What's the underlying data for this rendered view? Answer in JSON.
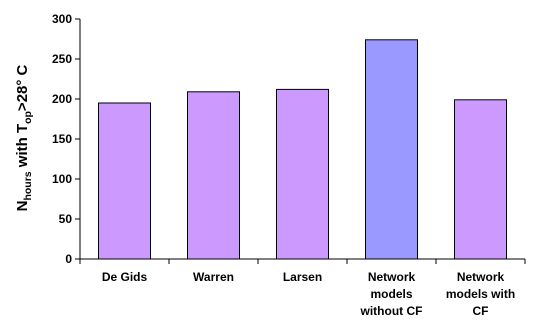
{
  "chart_data": {
    "type": "bar",
    "title": "",
    "xlabel": "",
    "ylabel": {
      "base": "N",
      "sub1": "hours",
      "mid": " with T",
      "sub2": "op",
      "tail": ">28° C"
    },
    "categories": [
      [
        "De Gids"
      ],
      [
        "Warren"
      ],
      [
        "Larsen"
      ],
      [
        "Network",
        "models",
        "without CF"
      ],
      [
        "Network",
        "models with",
        "CF"
      ]
    ],
    "values": [
      195,
      209,
      212,
      274,
      199
    ],
    "bar_colors": [
      "#cc99ff",
      "#cc99ff",
      "#cc99ff",
      "#9999ff",
      "#cc99ff"
    ],
    "ylim": [
      0,
      300
    ],
    "yticks": [
      0,
      50,
      100,
      150,
      200,
      250,
      300
    ],
    "grid": false,
    "legend": "none"
  }
}
